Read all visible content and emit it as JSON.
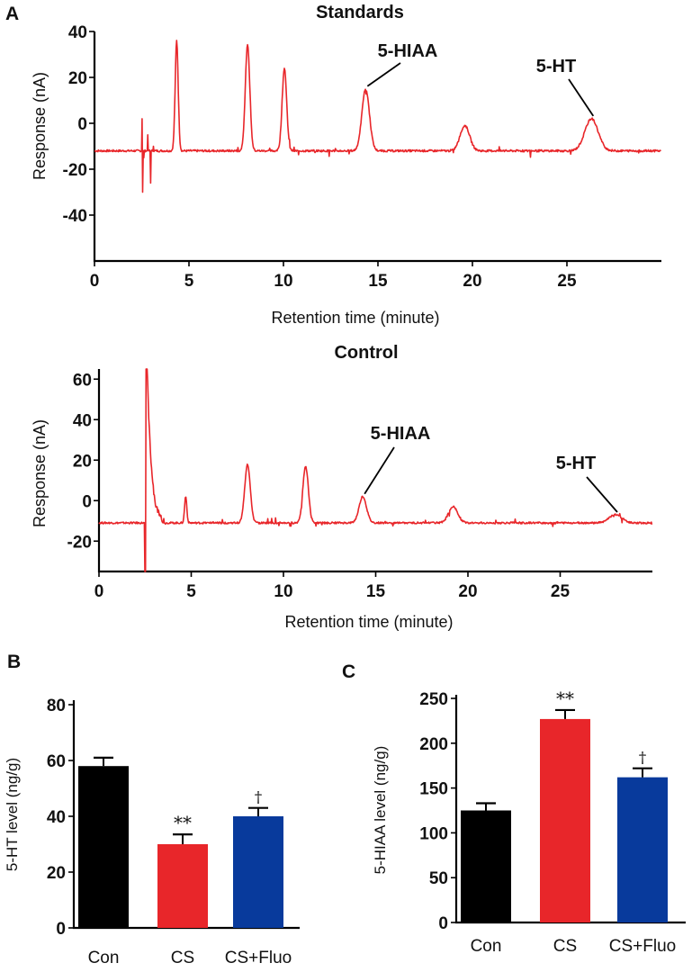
{
  "panel_labels": {
    "a": "A",
    "b": "B",
    "c": "C"
  },
  "chart_data": [
    {
      "type": "line",
      "title": "Standards",
      "xlabel": "Retention time (minute)",
      "ylabel": "Response (nA)",
      "xlim": [
        0,
        30
      ],
      "ylim": [
        -60,
        40
      ],
      "x_ticks": [
        "0",
        "5",
        "10",
        "15",
        "20",
        "25"
      ],
      "y_ticks": [
        "40",
        "20",
        "0",
        "-20",
        "-40"
      ],
      "y_tick_values": [
        40,
        20,
        0,
        -20,
        -40
      ],
      "baseline": -12,
      "peaks": [
        {
          "x": 4.35,
          "y": 36,
          "w": 0.08
        },
        {
          "x": 8.1,
          "y": 34,
          "w": 0.12
        },
        {
          "x": 10.05,
          "y": 24,
          "w": 0.12
        },
        {
          "x": 14.35,
          "y": 15,
          "w": 0.2
        },
        {
          "x": 19.6,
          "y": -1,
          "w": 0.25
        },
        {
          "x": 26.3,
          "y": 2,
          "w": 0.35
        }
      ],
      "injection_spikes": [
        [
          2.5,
          2
        ],
        [
          2.52,
          -30
        ],
        [
          2.6,
          -15
        ],
        [
          2.8,
          -5
        ],
        [
          2.95,
          -26
        ],
        [
          3.1,
          -10
        ]
      ],
      "annotations": [
        {
          "label": "5-HIAA",
          "peak_x": 14.35,
          "peak_y": 15
        },
        {
          "label": "5-HT",
          "peak_x": 26.3,
          "peak_y": 2
        }
      ]
    },
    {
      "type": "line",
      "title": "Control",
      "xlabel": "Retention time (minute)",
      "ylabel": "Response (nA)",
      "xlim": [
        0,
        30
      ],
      "ylim": [
        -35,
        65
      ],
      "x_ticks": [
        "0",
        "5",
        "10",
        "15",
        "20",
        "25"
      ],
      "y_ticks": [
        "60",
        "40",
        "20",
        "0",
        "-20"
      ],
      "y_tick_values": [
        60,
        40,
        20,
        0,
        -20
      ],
      "baseline": -11,
      "peaks": [
        {
          "x": 4.7,
          "y": 2,
          "w": 0.06
        },
        {
          "x": 8.05,
          "y": 18,
          "w": 0.15
        },
        {
          "x": 11.2,
          "y": 17,
          "w": 0.15
        },
        {
          "x": 14.3,
          "y": 2,
          "w": 0.2
        },
        {
          "x": 19.2,
          "y": -3,
          "w": 0.25
        },
        {
          "x": 28.0,
          "y": -7,
          "w": 0.35
        }
      ],
      "solvent_front": {
        "start": 2.5,
        "top": 65,
        "decay_to": 3.6
      },
      "annotations": [
        {
          "label": "5-HIAA",
          "peak_x": 14.3,
          "peak_y": 2
        },
        {
          "label": "5-HT",
          "peak_x": 28.0,
          "peak_y": -7
        }
      ]
    },
    {
      "type": "bar",
      "title": "",
      "categories": [
        "Con",
        "CS",
        "CS+Fluo"
      ],
      "values": [
        58,
        30,
        40
      ],
      "errors": [
        3,
        3.5,
        3
      ],
      "colors": [
        "#000000",
        "#e8262a",
        "#083a9c"
      ],
      "significance": [
        "",
        "**",
        "†"
      ],
      "ylabel": "5-HT level (ng/g)",
      "ylim": [
        0,
        80
      ],
      "y_ticks": [
        "0",
        "20",
        "40",
        "60",
        "80"
      ],
      "y_tick_values": [
        0,
        20,
        40,
        60,
        80
      ]
    },
    {
      "type": "bar",
      "title": "",
      "categories": [
        "Con",
        "CS",
        "CS+Fluo"
      ],
      "values": [
        125,
        227,
        162
      ],
      "errors": [
        8,
        10,
        10
      ],
      "colors": [
        "#000000",
        "#e8262a",
        "#083a9c"
      ],
      "significance": [
        "",
        "**",
        "†"
      ],
      "ylabel": "5-HIAA level (ng/g)",
      "ylim": [
        0,
        250
      ],
      "y_ticks": [
        "0",
        "50",
        "100",
        "150",
        "200",
        "250"
      ],
      "y_tick_values": [
        0,
        50,
        100,
        150,
        200,
        250
      ]
    }
  ]
}
